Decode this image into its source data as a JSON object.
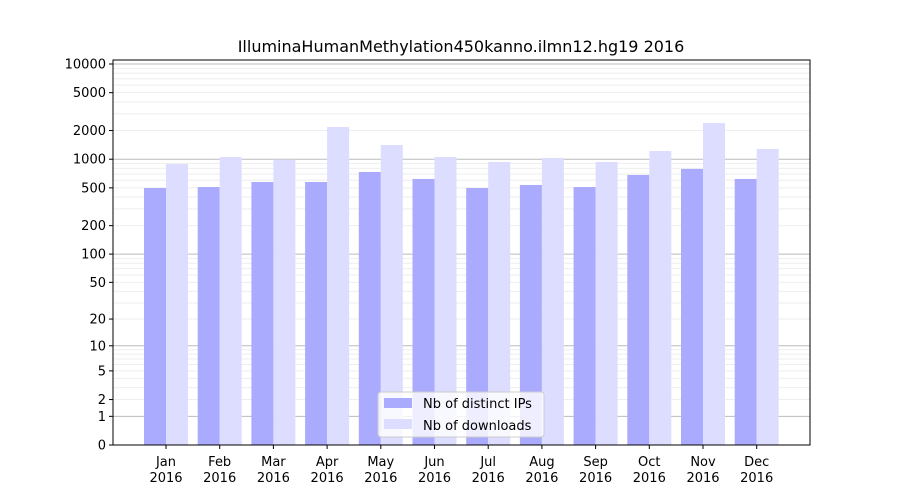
{
  "chart_data": {
    "type": "bar",
    "title": "IlluminaHumanMethylation450kanno.ilmn12.hg19 2016",
    "xlabel": "",
    "ylabel": "",
    "yscale": "symlog",
    "ylim": [
      0,
      11000
    ],
    "yticks": [
      0,
      1,
      2,
      5,
      10,
      20,
      50,
      100,
      200,
      500,
      1000,
      2000,
      5000,
      10000
    ],
    "ytick_labels": [
      "0",
      "1",
      "2",
      "5",
      "10",
      "20",
      "50",
      "100",
      "200",
      "500",
      "1000",
      "2000",
      "5000",
      "10000"
    ],
    "categories": [
      "Jan\n2016",
      "Feb\n2016",
      "Mar\n2016",
      "Apr\n2016",
      "May\n2016",
      "Jun\n2016",
      "Jul\n2016",
      "Aug\n2016",
      "Sep\n2016",
      "Oct\n2016",
      "Nov\n2016",
      "Dec\n2016"
    ],
    "grid": true,
    "legend_position": "bottom-center",
    "series": [
      {
        "name": "Nb of distinct IPs",
        "color": "#aaaaff",
        "values": [
          498,
          510,
          576,
          576,
          734,
          620,
          498,
          536,
          510,
          683,
          790,
          620
        ]
      },
      {
        "name": "Nb of downloads",
        "color": "#ddddff",
        "values": [
          890,
          1055,
          990,
          2180,
          1410,
          1055,
          935,
          1030,
          935,
          1220,
          2400,
          1280
        ]
      }
    ]
  }
}
